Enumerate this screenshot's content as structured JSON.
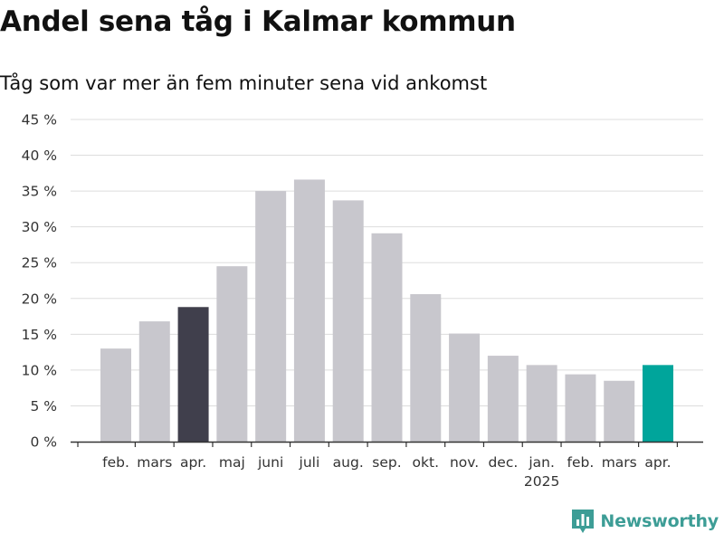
{
  "header": {
    "title": "Andel sena tåg i Kalmar kommun",
    "subtitle": "Tåg som var mer än fem minuter sena vid ankomst"
  },
  "brand": {
    "name": "Newsworthy",
    "icon": "newsworthy-logo-icon",
    "color": "#3d9d96"
  },
  "colors": {
    "default": "#c8c7cd",
    "highlight_dark": "#403f4c",
    "highlight_accent": "#00a59b",
    "grid": "#dddddd",
    "axis": "#333333"
  },
  "chart_data": {
    "type": "bar",
    "title": "Andel sena tåg i Kalmar kommun",
    "subtitle": "Tåg som var mer än fem minuter sena vid ankomst",
    "xlabel": "",
    "ylabel": "",
    "ylim": [
      0,
      45
    ],
    "yticks": [
      0,
      5,
      10,
      15,
      20,
      25,
      30,
      35,
      40,
      45
    ],
    "y_tick_format": "{v} %",
    "grid": true,
    "categories": [
      "feb.",
      "mars",
      "apr.",
      "maj",
      "juni",
      "juli",
      "aug.",
      "sep.",
      "okt.",
      "nov.",
      "dec.",
      "jan.",
      "feb.",
      "mars",
      "apr."
    ],
    "values": [
      13.0,
      16.8,
      18.8,
      24.5,
      35.0,
      36.6,
      33.7,
      29.1,
      20.6,
      15.1,
      12.0,
      10.7,
      9.4,
      8.5,
      10.7
    ],
    "bar_colors": [
      "#c8c7cd",
      "#c8c7cd",
      "#403f4c",
      "#c8c7cd",
      "#c8c7cd",
      "#c8c7cd",
      "#c8c7cd",
      "#c8c7cd",
      "#c8c7cd",
      "#c8c7cd",
      "#c8c7cd",
      "#c8c7cd",
      "#c8c7cd",
      "#c8c7cd",
      "#00a59b"
    ],
    "year_labels": [
      {
        "index": 11,
        "label": "2025"
      }
    ]
  }
}
